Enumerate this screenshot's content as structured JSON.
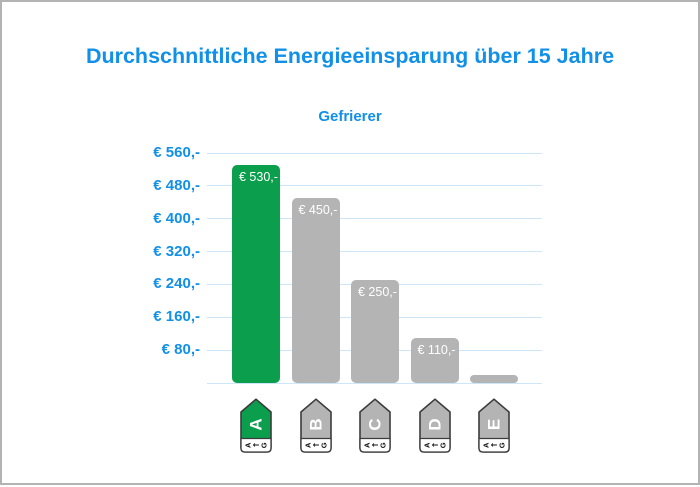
{
  "title": "Durchschnittliche Energieeinsparung über 15 Jahre",
  "subtitle": "Gefrierer",
  "colors": {
    "title_blue": "#1190e8",
    "gridline_blue": "#cde7f8",
    "bar_green": "#0a9e4d",
    "bar_gray": "#b4b4b4",
    "bar_label_white": "#ffffff",
    "tag_outline": "#3c3c3c",
    "page_border": "#b3b3b3",
    "background": "#ffffff"
  },
  "chart_data": {
    "type": "bar",
    "title": "Durchschnittliche Energieeinsparung über 15 Jahre",
    "subtitle": "Gefrierer",
    "categories": [
      "A",
      "B",
      "C",
      "D",
      "E"
    ],
    "values": [
      530,
      450,
      250,
      110,
      20
    ],
    "bar_labels": [
      "€ 530,-",
      "€ 450,-",
      "€ 250,-",
      "€ 110,-",
      ""
    ],
    "bar_colors": [
      "#0a9e4d",
      "#b4b4b4",
      "#b4b4b4",
      "#b4b4b4",
      "#b4b4b4"
    ],
    "y_ticks": [
      560,
      480,
      400,
      320,
      240,
      160,
      80
    ],
    "y_tick_labels": [
      "€ 560,-",
      "€ 480,-",
      "€ 400,-",
      "€ 320,-",
      "€ 240,-",
      "€ 160,-",
      "€ 80,-"
    ],
    "ylim": [
      0,
      560
    ],
    "grid": true,
    "legend": "none",
    "x_axis_icons": "eu-energy-class-tags"
  },
  "energy_tags": {
    "scale_from": "A",
    "scale_arrow": "←",
    "scale_to": "G",
    "classes": [
      {
        "letter": "A",
        "fill": "#0a9e4d",
        "letter_color": "#ffffff"
      },
      {
        "letter": "B",
        "fill": "#b4b4b4",
        "letter_color": "#ffffff"
      },
      {
        "letter": "C",
        "fill": "#b4b4b4",
        "letter_color": "#ffffff"
      },
      {
        "letter": "D",
        "fill": "#b4b4b4",
        "letter_color": "#ffffff"
      },
      {
        "letter": "E",
        "fill": "#b4b4b4",
        "letter_color": "#ffffff"
      }
    ]
  }
}
